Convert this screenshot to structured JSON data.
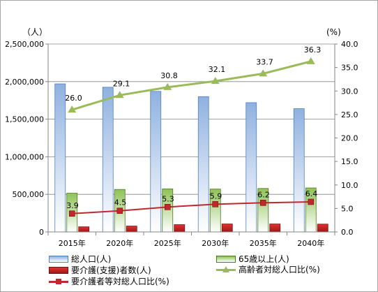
{
  "chart_data": {
    "type": "bar+line",
    "categories": [
      "2015年",
      "2020年",
      "2025年",
      "2030年",
      "2035年",
      "2040年"
    ],
    "left_axis": {
      "unit_label": "（人）",
      "range": [
        0,
        2500000
      ],
      "ticks": [
        "0",
        "500,000",
        "1,000,000",
        "1,500,000",
        "2,000,000",
        "2,500,000"
      ]
    },
    "right_axis": {
      "unit_label": "(%)",
      "range": [
        0,
        40
      ],
      "ticks": [
        "0.0",
        "5.0",
        "10.0",
        "15.0",
        "20.0",
        "25.0",
        "30.0",
        "35.0",
        "40.0"
      ]
    },
    "series": [
      {
        "name": "総人口(人)",
        "kind": "bar",
        "axis": "left",
        "color": "#8fb4e3",
        "values": [
          1970000,
          1925000,
          1870000,
          1800000,
          1720000,
          1640000
        ]
      },
      {
        "name": "65歳以上(人)",
        "kind": "bar",
        "axis": "left",
        "color": "#9bca64",
        "values": [
          515000,
          565000,
          572000,
          570000,
          578000,
          585000
        ]
      },
      {
        "name": "要介護(支援)者数(人)",
        "kind": "bar",
        "axis": "left",
        "color": "#d42c2c",
        "values": [
          68000,
          78000,
          97000,
          106000,
          106000,
          104000
        ]
      },
      {
        "name": "高齢者対総人口比(%)",
        "kind": "line",
        "axis": "right",
        "color": "#9bbb59",
        "marker": "triangle",
        "values": [
          26.0,
          29.1,
          30.8,
          32.1,
          33.7,
          36.3
        ],
        "labels": [
          "26.0",
          "29.1",
          "30.8",
          "32.1",
          "33.7",
          "36.3"
        ]
      },
      {
        "name": "要介護者等対総人口比(%)",
        "kind": "line",
        "axis": "right",
        "color": "#c0282d",
        "marker": "square",
        "values": [
          3.9,
          4.5,
          5.3,
          5.9,
          6.2,
          6.4
        ],
        "labels": [
          "3.9",
          "4.5",
          "5.3",
          "5.9",
          "6.2",
          "6.4"
        ]
      }
    ],
    "grid": "horizontal",
    "legend_position": "bottom"
  }
}
